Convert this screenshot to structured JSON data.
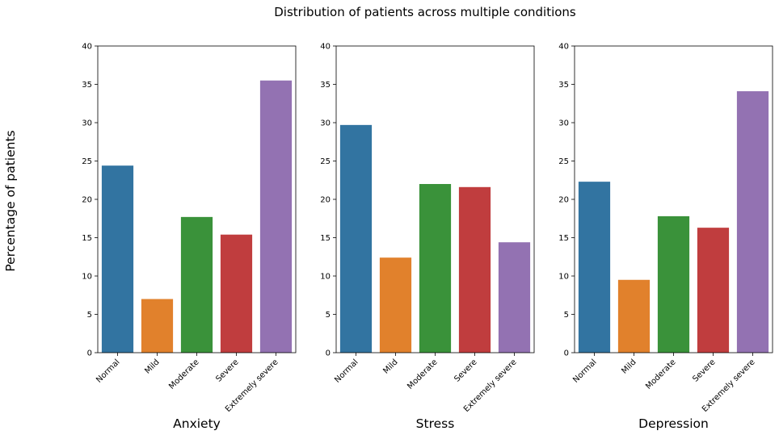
{
  "figure": {
    "title": "Distribution of patients across multiple conditions",
    "ylabel": "Percentage of patients"
  },
  "chart_data": [
    {
      "type": "bar",
      "xlabel": "Anxiety",
      "categories": [
        "Normal",
        "Mild",
        "Moderate",
        "Severe",
        "Extremely severe"
      ],
      "values": [
        24.4,
        7.0,
        17.7,
        15.4,
        35.5
      ],
      "ylim": [
        0,
        40
      ],
      "yticks": [
        0,
        5,
        10,
        15,
        20,
        25,
        30,
        35,
        40
      ],
      "grid": false
    },
    {
      "type": "bar",
      "xlabel": "Stress",
      "categories": [
        "Normal",
        "Mild",
        "Moderate",
        "Severe",
        "Extremely severe"
      ],
      "values": [
        29.7,
        12.4,
        22.0,
        21.6,
        14.4
      ],
      "ylim": [
        0,
        40
      ],
      "yticks": [
        0,
        5,
        10,
        15,
        20,
        25,
        30,
        35,
        40
      ],
      "grid": false
    },
    {
      "type": "bar",
      "xlabel": "Depression",
      "categories": [
        "Normal",
        "Mild",
        "Moderate",
        "Severe",
        "Extremely severe"
      ],
      "values": [
        22.3,
        9.5,
        17.8,
        16.3,
        34.1
      ],
      "ylim": [
        0,
        40
      ],
      "yticks": [
        0,
        5,
        10,
        15,
        20,
        25,
        30,
        35,
        40
      ],
      "grid": false
    }
  ],
  "colors": {
    "bars": [
      "#3274a1",
      "#e1812c",
      "#3a923a",
      "#c03d3e",
      "#9372b2"
    ],
    "axis": "#000000"
  }
}
